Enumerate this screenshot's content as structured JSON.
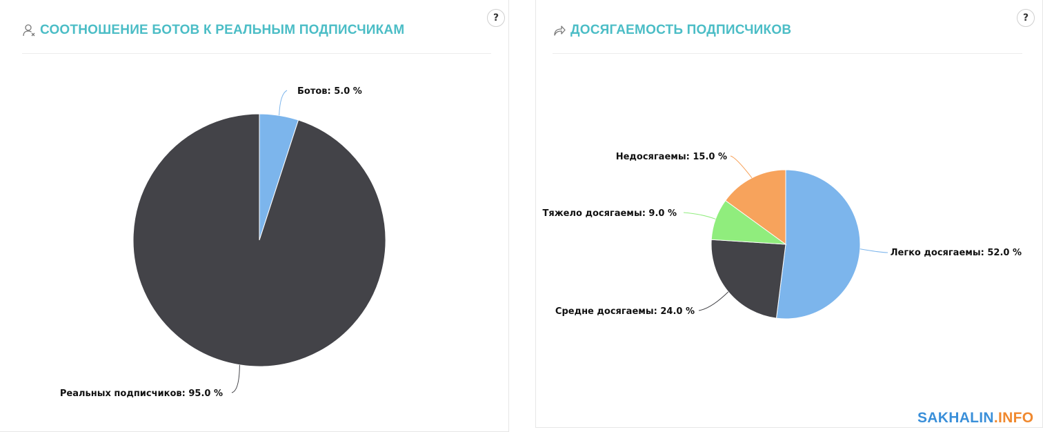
{
  "charts": {
    "bots": {
      "title": "СООТНОШЕНИЕ БОТОВ К РЕАЛЬНЫМ ПОДПИСЧИКАМ",
      "icon": "user-x-icon",
      "help_label": "?"
    },
    "reach": {
      "title": "ДОСЯГАЕМОСТЬ ПОДПИСЧИКОВ",
      "icon": "share-arrow-icon",
      "help_label": "?"
    }
  },
  "chart_data": [
    {
      "type": "pie",
      "title": "СООТНОШЕНИЕ БОТОВ К РЕАЛЬНЫМ ПОДПИСЧИКАМ",
      "slices": [
        {
          "name": "Ботов",
          "value": 5.0,
          "label": "Ботов: 5.0 %",
          "color": "#7cb5ec"
        },
        {
          "name": "Реальных подписчиков",
          "value": 95.0,
          "label": "Реальных подписчиков: 95.0 %",
          "color": "#434348"
        }
      ]
    },
    {
      "type": "pie",
      "title": "ДОСЯГАЕМОСТЬ ПОДПИСЧИКОВ",
      "slices": [
        {
          "name": "Легко досягаемы",
          "value": 52.0,
          "label": "Легко досягаемы: 52.0 %",
          "color": "#7cb5ec"
        },
        {
          "name": "Средне досягаемы",
          "value": 24.0,
          "label": "Средне досягаемы: 24.0 %",
          "color": "#434348"
        },
        {
          "name": "Тяжело досягаемы",
          "value": 9.0,
          "label": "Тяжело досягаемы: 9.0 %",
          "color": "#90ed7d"
        },
        {
          "name": "Недосягаемы",
          "value": 15.0,
          "label": "Недосягаемы: 15.0 %",
          "color": "#f7a35c"
        }
      ]
    }
  ],
  "watermark": {
    "main": "SAKHALIN",
    "dot": ".INFO"
  }
}
